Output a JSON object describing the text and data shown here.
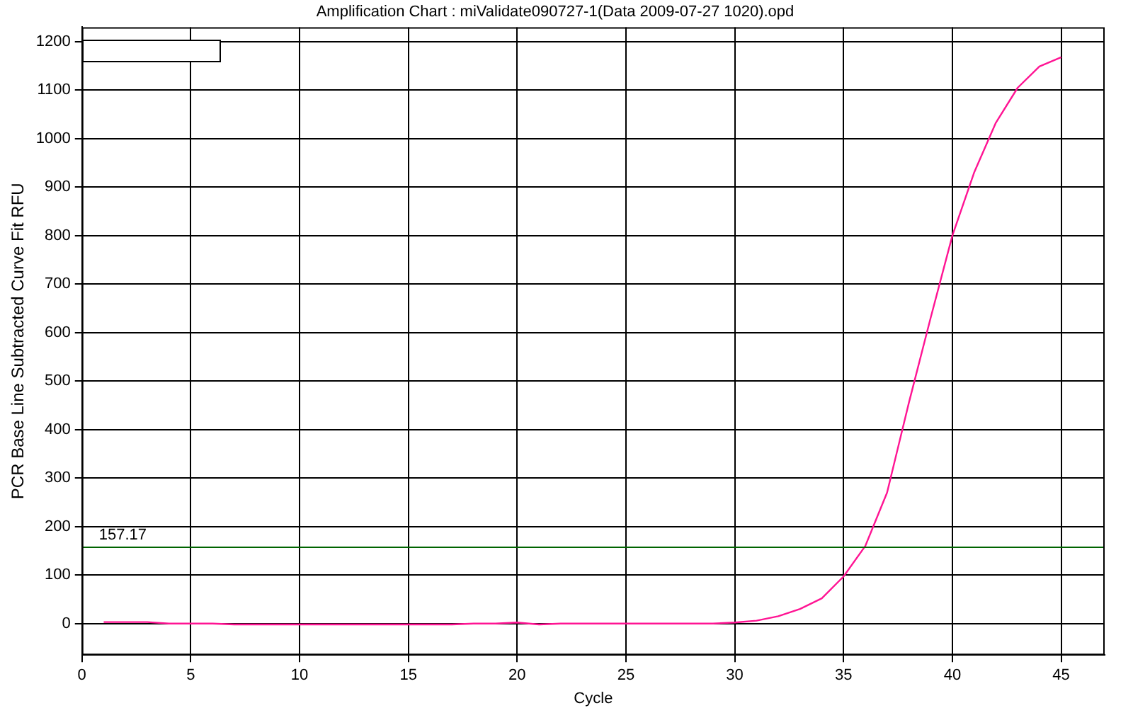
{
  "chart_data": {
    "type": "line",
    "title": "Amplification Chart : miValidate090727-1(Data 2009-07-27 1020).opd",
    "xlabel": "Cycle",
    "ylabel": "PCR Base Line Subtracted Curve Fit RFU",
    "x": [
      1,
      2,
      3,
      4,
      5,
      6,
      7,
      8,
      9,
      10,
      11,
      12,
      13,
      14,
      15,
      16,
      17,
      18,
      19,
      20,
      21,
      22,
      23,
      24,
      25,
      26,
      27,
      28,
      29,
      30,
      31,
      32,
      33,
      34,
      35,
      36,
      37,
      38,
      39,
      40,
      41,
      42,
      43,
      44,
      45
    ],
    "series": [
      {
        "color": "#ff1493",
        "values": [
          3,
          3,
          3,
          0,
          0,
          0,
          -2,
          -2,
          -2,
          -2,
          -2,
          -2,
          -2,
          -2,
          -2,
          -2,
          -2,
          0,
          0,
          2,
          -2,
          0,
          0,
          0,
          0,
          0,
          0,
          0,
          0,
          2,
          6,
          15,
          30,
          52,
          97,
          160,
          270,
          455,
          630,
          800,
          930,
          1033,
          1105,
          1149,
          1168
        ]
      }
    ],
    "xlim": [
      0,
      47
    ],
    "xticks": [
      0,
      5,
      10,
      15,
      20,
      25,
      30,
      35,
      40,
      45
    ],
    "ylim": [
      -65,
      1230
    ],
    "yticks": [
      0,
      100,
      200,
      300,
      400,
      500,
      600,
      700,
      800,
      900,
      1000,
      1100,
      1200
    ],
    "ref_lines": [
      {
        "axis": "y",
        "value": 157.17,
        "label": "157.17",
        "color": "#006400"
      }
    ],
    "grid": true,
    "legend": false,
    "marker": "none",
    "line_style": "solid"
  }
}
